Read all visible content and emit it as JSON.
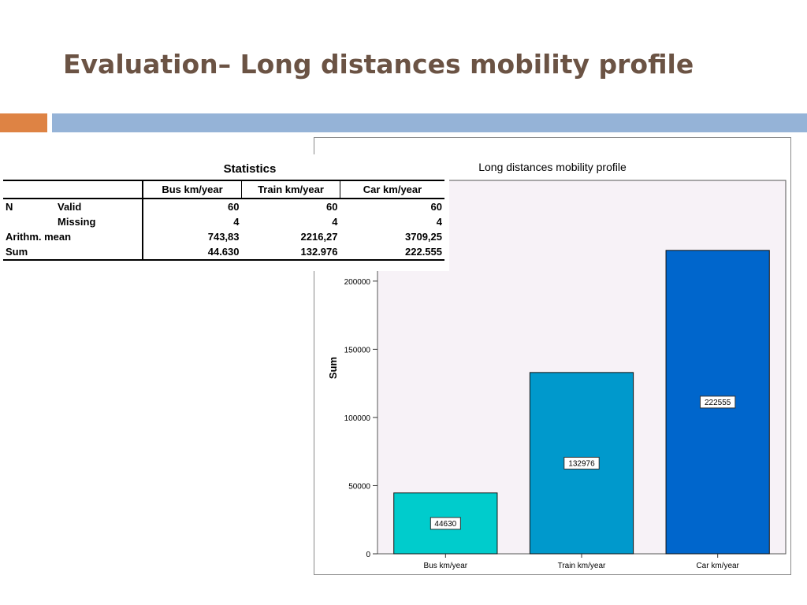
{
  "slide": {
    "title": "Evaluation– Long distances mobility profile",
    "accent_colors": {
      "orange": "#de8344",
      "blue": "#95b3d7",
      "title": "#6b5344"
    }
  },
  "stats_table": {
    "caption": "Statistics",
    "columns": [
      "Bus km/year",
      "Train km/year",
      "Car km/year"
    ],
    "rows": [
      {
        "label1": "N",
        "label2": "Valid",
        "values": [
          "60",
          "60",
          "60"
        ]
      },
      {
        "label1": "",
        "label2": "Missing",
        "values": [
          "4",
          "4",
          "4"
        ]
      },
      {
        "label1": "Arithm. mean",
        "label2": "",
        "values": [
          "743,83",
          "2216,27",
          "3709,25"
        ]
      },
      {
        "label1": "Sum",
        "label2": "",
        "values": [
          "44.630",
          "132.976",
          "222.555"
        ]
      }
    ]
  },
  "chart_data": {
    "type": "bar",
    "title": "Long distances mobility profile",
    "xlabel": "",
    "ylabel": "Sum",
    "categories": [
      "Bus km/year",
      "Train km/year",
      "Car km/year"
    ],
    "values": [
      44630,
      132976,
      222555
    ],
    "data_labels": [
      "44630",
      "132976",
      "222555"
    ],
    "colors": [
      "#00cccc",
      "#0099cc",
      "#0066cc"
    ],
    "yticks": [
      0,
      50000,
      100000,
      150000,
      200000
    ],
    "ytick_labels": [
      "0",
      "50000",
      "100000",
      "150000",
      "200000"
    ],
    "ylim": [
      0,
      260000
    ],
    "plot_background": "#f7f2f7"
  }
}
